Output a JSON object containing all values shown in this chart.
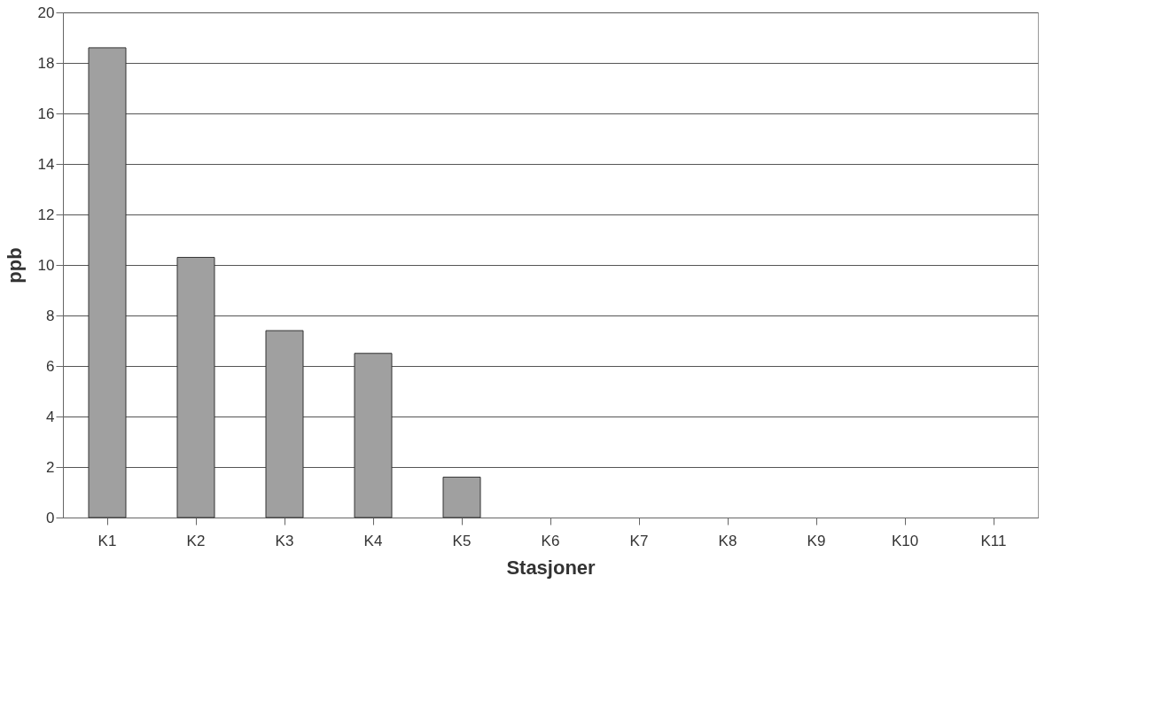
{
  "chart_data": {
    "type": "bar",
    "xlabel": "Stasjoner",
    "ylabel": "ppb",
    "categories": [
      "K1",
      "K2",
      "K3",
      "K4",
      "K5",
      "K6",
      "K7",
      "K8",
      "K9",
      "K10",
      "K11"
    ],
    "values": [
      18.6,
      10.3,
      7.4,
      6.5,
      1.6,
      null,
      null,
      null,
      null,
      null,
      null
    ],
    "color": "#a0a0a0",
    "ylim": [
      0,
      20
    ],
    "yticks": [
      0,
      2,
      4,
      6,
      8,
      10,
      12,
      14,
      16,
      18,
      20
    ],
    "grid": "y"
  }
}
